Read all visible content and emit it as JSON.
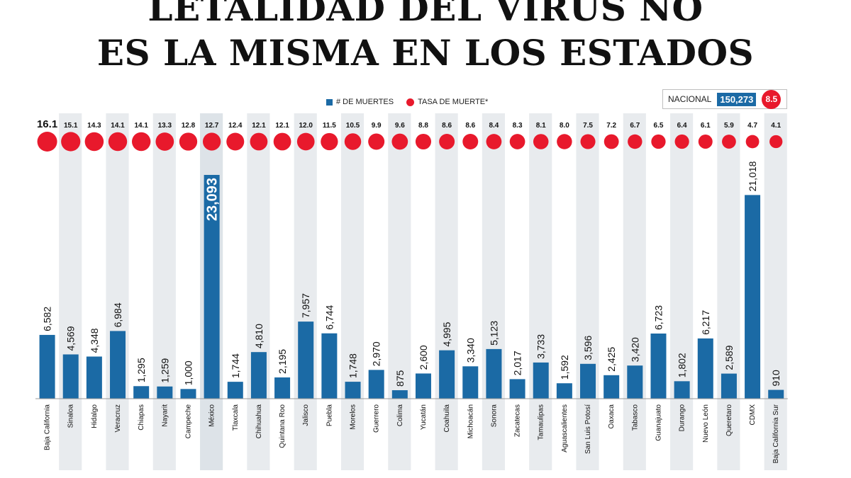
{
  "title": {
    "line1": "LETALIDAD DEL VIRUS NO",
    "line2": "ES LA MISMA EN LOS ESTADOS"
  },
  "legend": {
    "deaths_label": "# DE MUERTES",
    "rate_label": "TASA DE MUERTE*"
  },
  "nacional": {
    "label": "NACIONAL",
    "deaths": "150,273",
    "rate": "8.5"
  },
  "colors": {
    "bar": "#1b6aa5",
    "dot": "#e8192c",
    "stripe": "#e8ebee"
  },
  "chart_data": {
    "type": "bar",
    "categories": [
      "Baja California",
      "Sinaloa",
      "Hidalgo",
      "Veracruz",
      "Chiapas",
      "Nayarit",
      "Campeche",
      "México",
      "Tlaxcala",
      "Chihuahua",
      "Quintana Roo",
      "Jalisco",
      "Puebla",
      "Morelos",
      "Guerrero",
      "Colima",
      "Yucatán",
      "Coahuila",
      "Michoacán",
      "Sonora",
      "Zacatecas",
      "Tamaulipas",
      "Aguascalientes",
      "San Luis Potosí",
      "Oaxaca",
      "Tabasco",
      "Guanajuato",
      "Durango",
      "Nuevo León",
      "Queretaro",
      "CDMX",
      "Baja California Sur"
    ],
    "series": [
      {
        "name": "# DE MUERTES",
        "values": [
          6582,
          4569,
          4348,
          6984,
          1295,
          1259,
          1000,
          23093,
          1744,
          4810,
          2195,
          7957,
          6744,
          1748,
          2970,
          875,
          2600,
          4995,
          3340,
          5123,
          2017,
          3733,
          1592,
          3596,
          2425,
          3420,
          6723,
          1802,
          6217,
          2589,
          21018,
          910
        ],
        "labels": [
          "6,582",
          "4,569",
          "4,348",
          "6,984",
          "1,295",
          "1,259",
          "1,000",
          "23,093",
          "1,744",
          "4,810",
          "2,195",
          "7,957",
          "6,744",
          "1,748",
          "2,970",
          "875",
          "2,600",
          "4,995",
          "3,340",
          "5,123",
          "2,017",
          "3,733",
          "1,592",
          "3,596",
          "2,425",
          "3,420",
          "6,723",
          "1,802",
          "6,217",
          "2,589",
          "21,018",
          "910"
        ]
      },
      {
        "name": "TASA DE MUERTE*",
        "values": [
          16.1,
          15.1,
          14.3,
          14.1,
          14.1,
          13.3,
          12.8,
          12.7,
          12.4,
          12.1,
          12.1,
          12.0,
          11.5,
          10.5,
          9.9,
          9.6,
          8.8,
          8.6,
          8.6,
          8.4,
          8.3,
          8.1,
          8.0,
          7.5,
          7.2,
          6.7,
          6.5,
          6.4,
          6.1,
          5.9,
          4.7,
          4.1
        ],
        "labels": [
          "16.1",
          "15.1",
          "14.3",
          "14.1",
          "14.1",
          "13.3",
          "12.8",
          "12.7",
          "12.4",
          "12.1",
          "12.1",
          "12.0",
          "11.5",
          "10.5",
          "9.9",
          "9.6",
          "8.8",
          "8.6",
          "8.6",
          "8.4",
          "8.3",
          "8.1",
          "8.0",
          "7.5",
          "7.2",
          "6.7",
          "6.5",
          "6.4",
          "6.1",
          "5.9",
          "4.7",
          "4.1"
        ]
      }
    ],
    "highlight": "México",
    "ylim": [
      0,
      23093
    ]
  }
}
